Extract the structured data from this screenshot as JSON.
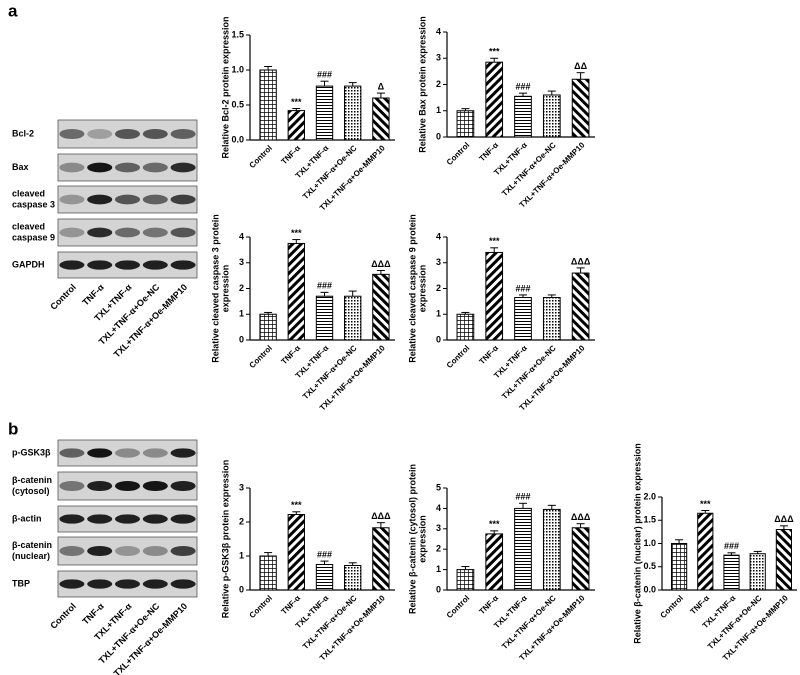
{
  "panels": [
    {
      "label": "a",
      "blots": [
        [
          "Bcl-2"
        ],
        [
          "Bax"
        ],
        [
          "cleaved",
          "caspase 3"
        ],
        [
          "cleaved",
          "caspase 9"
        ],
        [
          "GAPDH"
        ]
      ],
      "lanes": [
        "Control",
        "TNF-α",
        "TXL+TNF-α",
        "TXL+TNF-α+Oe-NC",
        "TXL+TNF-α+Oe-MMP10"
      ]
    },
    {
      "label": "b",
      "blots": [
        [
          "p-GSK3β"
        ],
        [
          "β-catenin",
          "(cytosol)"
        ],
        [
          "β-actin"
        ],
        [
          "β-catenin",
          "(nuclear)"
        ],
        [
          "TBP"
        ]
      ],
      "lanes": [
        "Control",
        "TNF-α",
        "TXL+TNF-α",
        "TXL+TNF-α+Oe-NC",
        "TXL+TNF-α+Oe-MMP10"
      ]
    }
  ],
  "chart_data": [
    {
      "type": "bar",
      "y_label": [
        "Relative Bcl-2 protein expression"
      ],
      "categories": [
        "Control",
        "TNF-α",
        "TXL+TNF-α",
        "TXL+TNF-α+Oe-NC",
        "TXL+TNF-α+Oe-MMP10"
      ],
      "values": [
        1.0,
        0.42,
        0.77,
        0.77,
        0.6
      ],
      "errors": [
        0.05,
        0.03,
        0.07,
        0.05,
        0.07
      ],
      "annotations": [
        null,
        "***",
        "###",
        null,
        "Δ"
      ],
      "fills": [
        "crosshatch",
        "backslash",
        "horizontal",
        "dots",
        "slash"
      ],
      "color": "#000000",
      "ylim": [
        0,
        1.5
      ],
      "yticks": [
        {
          "value": 0,
          "label": "0.0"
        },
        {
          "value": 0.5,
          "label": "0.5"
        },
        {
          "value": 1,
          "label": "1.0"
        },
        {
          "value": 1.5,
          "label": "1.5"
        }
      ]
    },
    {
      "type": "bar",
      "y_label": [
        "Relative Bax protein expression"
      ],
      "categories": [
        "Control",
        "TNF-α",
        "TXL+TNF-α",
        "TXL+TNF-α+Oe-NC",
        "TXL+TNF-α+Oe-MMP10"
      ],
      "values": [
        1.0,
        2.85,
        1.55,
        1.6,
        2.2
      ],
      "errors": [
        0.08,
        0.15,
        0.12,
        0.15,
        0.25
      ],
      "annotations": [
        null,
        "***",
        "###",
        null,
        "ΔΔ"
      ],
      "fills": [
        "crosshatch",
        "backslash",
        "horizontal",
        "dots",
        "slash"
      ],
      "color": "#000000",
      "ylim": [
        0,
        4
      ],
      "yticks": [
        0,
        1,
        2,
        3,
        4
      ]
    },
    {
      "type": "bar",
      "y_label": [
        "Relative cleaved caspase 3 protein",
        "expression"
      ],
      "categories": [
        "Control",
        "TNF-α",
        "TXL+TNF-α",
        "TXL+TNF-α+Oe-NC",
        "TXL+TNF-α+Oe-MMP10"
      ],
      "values": [
        1.0,
        3.75,
        1.7,
        1.7,
        2.55
      ],
      "errors": [
        0.07,
        0.15,
        0.15,
        0.2,
        0.15
      ],
      "annotations": [
        null,
        "***",
        "###",
        null,
        "ΔΔΔ"
      ],
      "fills": [
        "crosshatch",
        "backslash",
        "horizontal",
        "dots",
        "slash"
      ],
      "color": "#000000",
      "ylim": [
        0,
        4
      ],
      "yticks": [
        0,
        1,
        2,
        3,
        4
      ]
    },
    {
      "type": "bar",
      "y_label": [
        "Relative cleaved caspase 9 protein",
        "expression"
      ],
      "categories": [
        "Control",
        "TNF-α",
        "TXL+TNF-α",
        "TXL+TNF-α+Oe-NC",
        "TXL+TNF-α+Oe-MMP10"
      ],
      "values": [
        1.0,
        3.4,
        1.65,
        1.65,
        2.6
      ],
      "errors": [
        0.07,
        0.18,
        0.1,
        0.1,
        0.2
      ],
      "annotations": [
        null,
        "***",
        "###",
        null,
        "ΔΔΔ"
      ],
      "fills": [
        "crosshatch",
        "backslash",
        "horizontal",
        "dots",
        "slash"
      ],
      "color": "#000000",
      "ylim": [
        0,
        4
      ],
      "yticks": [
        0,
        1,
        2,
        3,
        4
      ]
    },
    {
      "type": "bar",
      "y_label": [
        "Relative p-GSK3β protein expression"
      ],
      "categories": [
        "Control",
        "TNF-α",
        "TXL+TNF-α",
        "TXL+TNF-α+Oe-NC",
        "TXL+TNF-α+Oe-MMP10"
      ],
      "values": [
        1.0,
        2.22,
        0.75,
        0.72,
        1.83
      ],
      "errors": [
        0.1,
        0.08,
        0.1,
        0.08,
        0.15
      ],
      "annotations": [
        null,
        "***",
        "###",
        null,
        "ΔΔΔ"
      ],
      "fills": [
        "crosshatch",
        "backslash",
        "horizontal",
        "dots",
        "slash"
      ],
      "color": "#000000",
      "ylim": [
        0,
        3
      ],
      "yticks": [
        0,
        1,
        2,
        3
      ]
    },
    {
      "type": "bar",
      "y_label": [
        "Relative β-catenin (cytosol) protein",
        "expression"
      ],
      "categories": [
        "Control",
        "TNF-α",
        "TXL+TNF-α",
        "TXL+TNF-α+Oe-NC",
        "TXL+TNF-α+Oe-MMP10"
      ],
      "values": [
        1.0,
        2.75,
        4.0,
        3.95,
        3.05
      ],
      "errors": [
        0.15,
        0.15,
        0.25,
        0.2,
        0.2
      ],
      "annotations": [
        null,
        "***",
        "###",
        null,
        "ΔΔΔ"
      ],
      "fills": [
        "crosshatch",
        "backslash",
        "horizontal",
        "dots",
        "slash"
      ],
      "color": "#000000",
      "ylim": [
        0,
        5
      ],
      "yticks": [
        0,
        1,
        2,
        3,
        4,
        5
      ]
    },
    {
      "type": "bar",
      "y_label": [
        "Relative β-catenin (nuclear) protein expression"
      ],
      "categories": [
        "Control",
        "TNF-α",
        "TXL+TNF-α",
        "TXL+TNF-α+Oe-NC",
        "TXL+TNF-α+Oe-MMP10"
      ],
      "values": [
        1.0,
        1.65,
        0.75,
        0.78,
        1.3
      ],
      "errors": [
        0.08,
        0.06,
        0.05,
        0.05,
        0.08
      ],
      "annotations": [
        null,
        "***",
        "###",
        null,
        "ΔΔΔ"
      ],
      "fills": [
        "crosshatch",
        "backslash",
        "horizontal",
        "dots",
        "slash"
      ],
      "color": "#000000",
      "ylim": [
        0,
        2
      ],
      "yticks": [
        {
          "value": 0,
          "label": "0.0"
        },
        {
          "value": 0.5,
          "label": "0.5"
        },
        {
          "value": 1,
          "label": "1.0"
        },
        {
          "value": 1.5,
          "label": "1.5"
        },
        {
          "value": 2,
          "label": "2.0"
        }
      ]
    }
  ]
}
